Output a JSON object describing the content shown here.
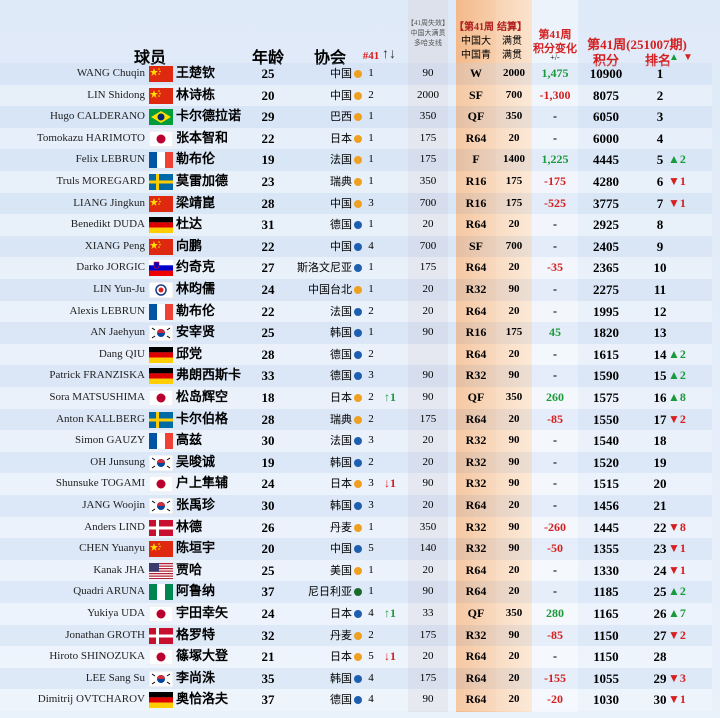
{
  "header": {
    "player": "球员",
    "age": "年龄",
    "association": "协会",
    "week": "#41",
    "week_arrows": "↑↓",
    "expiring": [
      "【41周失效】",
      "中国大满贯",
      "多哈支线"
    ],
    "settle": [
      "【第41周",
      "结算】"
    ],
    "event1": [
      "中国大",
      "满贯"
    ],
    "event2": [
      "中国青",
      "满贯"
    ],
    "change": [
      "第41周",
      "积分变化",
      "+/-"
    ],
    "period": "第41周(251007期)",
    "points": "积分",
    "rank": "排名",
    "up": "▲",
    "down": "▼"
  },
  "colors": {
    "up": "#1a9a3a",
    "down": "#d42020"
  },
  "rows": [
    {
      "name_en": "WANG Chuqin",
      "name_cn": "王楚钦",
      "age": 25,
      "association": "中国",
      "dot": "#f0a020",
      "seed": 1,
      "expiring": 90,
      "result": "W",
      "earned": 2000,
      "change": "1,475",
      "points": 10900,
      "rank": 1
    },
    {
      "name_en": "LIN Shidong",
      "name_cn": "林诗栋",
      "age": 20,
      "association": "中国",
      "dot": "#f0a020",
      "seed": 2,
      "expiring": 2000,
      "result": "SF",
      "earned": 700,
      "change": "-1,300",
      "points": 8075,
      "rank": 2
    },
    {
      "name_en": "Hugo CALDERANO",
      "name_cn": "卡尔德拉诺",
      "age": 29,
      "association": "巴西",
      "dot": "#f0a020",
      "seed": 1,
      "expiring": 350,
      "result": "QF",
      "earned": 350,
      "change": "-",
      "points": 6050,
      "rank": 3
    },
    {
      "name_en": "Tomokazu HARIMOTO",
      "name_cn": "张本智和",
      "age": 22,
      "association": "日本",
      "dot": "#f0a020",
      "seed": 1,
      "expiring": 175,
      "result": "R64",
      "earned": 20,
      "change": "-",
      "points": 6000,
      "rank": 4
    },
    {
      "name_en": "Felix LEBRUN",
      "name_cn": "勒布伦",
      "age": 19,
      "association": "法国",
      "dot": "#f0a020",
      "seed": 1,
      "expiring": 175,
      "result": "F",
      "earned": 1400,
      "change": "1,225",
      "points": 4445,
      "rank": 5,
      "rank_move": "▲2"
    },
    {
      "name_en": "Truls MOREGARD",
      "name_cn": "莫雷加德",
      "age": 23,
      "association": "瑞典",
      "dot": "#f0a020",
      "seed": 1,
      "expiring": 350,
      "result": "R16",
      "earned": 175,
      "change": "-175",
      "points": 4280,
      "rank": 6,
      "rank_move": "▼1"
    },
    {
      "name_en": "LIANG Jingkun",
      "name_cn": "梁靖崑",
      "age": 28,
      "association": "中国",
      "dot": "#f0a020",
      "seed": 3,
      "expiring": 700,
      "result": "R16",
      "earned": 175,
      "change": "-525",
      "points": 3775,
      "rank": 7,
      "rank_move": "▼1"
    },
    {
      "name_en": "Benedikt DUDA",
      "name_cn": "杜达",
      "age": 31,
      "association": "德国",
      "dot": "#1f5fb0",
      "seed": 1,
      "expiring": 20,
      "result": "R64",
      "earned": 20,
      "change": "-",
      "points": 2925,
      "rank": 8
    },
    {
      "name_en": "XIANG Peng",
      "name_cn": "向鹏",
      "age": 22,
      "association": "中国",
      "dot": "#1f5fb0",
      "seed": 4,
      "expiring": 700,
      "result": "SF",
      "earned": 700,
      "change": "-",
      "points": 2405,
      "rank": 9
    },
    {
      "name_en": "Darko JORGIC",
      "name_cn": "约奇克",
      "age": 27,
      "association": "斯洛文尼亚",
      "dot": "#1f5fb0",
      "seed": 1,
      "expiring": 175,
      "result": "R64",
      "earned": 20,
      "change": "-35",
      "points": 2365,
      "rank": 10
    },
    {
      "name_en": "LIN Yun-Ju",
      "name_cn": "林昀儒",
      "age": 24,
      "association": "中国台北",
      "dot": "#f0a020",
      "seed": 1,
      "expiring": 20,
      "result": "R32",
      "earned": 90,
      "change": "-",
      "points": 2275,
      "rank": 11
    },
    {
      "name_en": "Alexis LEBRUN",
      "name_cn": "勒布伦",
      "age": 22,
      "association": "法国",
      "dot": "#1f5fb0",
      "seed": 2,
      "expiring": 20,
      "result": "R64",
      "earned": 20,
      "change": "-",
      "points": 1995,
      "rank": 12
    },
    {
      "name_en": "AN Jaehyun",
      "name_cn": "安宰贤",
      "age": 25,
      "association": "韩国",
      "dot": "#1f5fb0",
      "seed": 1,
      "expiring": 90,
      "result": "R16",
      "earned": 175,
      "change": "45",
      "points": 1820,
      "rank": 13
    },
    {
      "name_en": "Dang QIU",
      "name_cn": "邱党",
      "age": 28,
      "association": "德国",
      "dot": "#1f5fb0",
      "seed": 2,
      "result": "R64",
      "earned": 20,
      "change": "-",
      "points": 1615,
      "rank": 14,
      "rank_move": "▲2"
    },
    {
      "name_en": "Patrick FRANZISKA",
      "name_cn": "弗朗西斯卡",
      "age": 33,
      "association": "德国",
      "dot": "#1f5fb0",
      "seed": 3,
      "expiring": 90,
      "result": "R32",
      "earned": 90,
      "change": "-",
      "points": 1590,
      "rank": 15,
      "rank_move": "▲2"
    },
    {
      "name_en": "Sora MATSUSHIMA",
      "name_cn": "松岛辉空",
      "age": 18,
      "association": "日本",
      "dot": "#f0a020",
      "seed": 2,
      "move": "↑1",
      "expiring": 90,
      "result": "QF",
      "earned": 350,
      "change": "260",
      "points": 1575,
      "rank": 16,
      "rank_move": "▲8"
    },
    {
      "name_en": "Anton KALLBERG",
      "name_cn": "卡尔伯格",
      "age": 28,
      "association": "瑞典",
      "dot": "#f0a020",
      "seed": 2,
      "expiring": 175,
      "result": "R64",
      "earned": 20,
      "change": "-85",
      "points": 1550,
      "rank": 17,
      "rank_move": "▼2"
    },
    {
      "name_en": "Simon GAUZY",
      "name_cn": "高兹",
      "age": 30,
      "association": "法国",
      "dot": "#1f5fb0",
      "seed": 3,
      "expiring": 20,
      "result": "R32",
      "earned": 90,
      "change": "-",
      "points": 1540,
      "rank": 18
    },
    {
      "name_en": "OH Junsung",
      "name_cn": "吴晙诚",
      "age": 19,
      "association": "韩国",
      "dot": "#1f5fb0",
      "seed": 2,
      "expiring": 20,
      "result": "R32",
      "earned": 90,
      "change": "-",
      "points": 1520,
      "rank": 19
    },
    {
      "name_en": "Shunsuke TOGAMI",
      "name_cn": "户上隼辅",
      "age": 24,
      "association": "日本",
      "dot": "#f0a020",
      "seed": 3,
      "move": "↓1",
      "expiring": 90,
      "result": "R32",
      "earned": 90,
      "change": "-",
      "points": 1515,
      "rank": 20
    },
    {
      "name_en": "JANG Woojin",
      "name_cn": "张禹珍",
      "age": 30,
      "association": "韩国",
      "dot": "#1f5fb0",
      "seed": 3,
      "expiring": 20,
      "result": "R64",
      "earned": 20,
      "change": "-",
      "points": 1456,
      "rank": 21
    },
    {
      "name_en": "Anders LIND",
      "name_cn": "林德",
      "age": 26,
      "association": "丹麦",
      "dot": "#f0a020",
      "seed": 1,
      "expiring": 350,
      "result": "R32",
      "earned": 90,
      "change": "-260",
      "points": 1445,
      "rank": 22,
      "rank_move": "▼8"
    },
    {
      "name_en": "CHEN Yuanyu",
      "name_cn": "陈垣宇",
      "age": 20,
      "association": "中国",
      "dot": "#1f5fb0",
      "seed": 5,
      "expiring": 140,
      "result": "R32",
      "earned": 90,
      "change": "-50",
      "points": 1355,
      "rank": 23,
      "rank_move": "▼1"
    },
    {
      "name_en": "Kanak JHA",
      "name_cn": "贾哈",
      "age": 25,
      "association": "美国",
      "dot": "#f0a020",
      "seed": 1,
      "expiring": 20,
      "result": "R64",
      "earned": 20,
      "change": "-",
      "points": 1330,
      "rank": 24,
      "rank_move": "▼1"
    },
    {
      "name_en": "Quadri ARUNA",
      "name_cn": "阿鲁纳",
      "age": 37,
      "association": "尼日利亚",
      "dot": "#1a6a2a",
      "seed": 1,
      "expiring": 90,
      "result": "R64",
      "earned": 20,
      "change": "-",
      "points": 1185,
      "rank": 25,
      "rank_move": "▲2"
    },
    {
      "name_en": "Yukiya UDA",
      "name_cn": "宇田幸矢",
      "age": 24,
      "association": "日本",
      "dot": "#1f5fb0",
      "seed": 4,
      "move": "↑1",
      "expiring": 33,
      "result": "QF",
      "earned": 350,
      "change": "280",
      "points": 1165,
      "rank": 26,
      "rank_move": "▲7"
    },
    {
      "name_en": "Jonathan GROTH",
      "name_cn": "格罗特",
      "age": 32,
      "association": "丹麦",
      "dot": "#f0a020",
      "seed": 2,
      "expiring": 175,
      "result": "R32",
      "earned": 90,
      "change": "-85",
      "points": 1150,
      "rank": 27,
      "rank_move": "▼2"
    },
    {
      "name_en": "Hiroto SHINOZUKA",
      "name_cn": "篠塚大登",
      "age": 21,
      "association": "日本",
      "dot": "#f0a020",
      "seed": 5,
      "move": "↓1",
      "expiring": 20,
      "result": "R64",
      "earned": 20,
      "change": "-",
      "points": 1150,
      "rank": 28
    },
    {
      "name_en": "LEE Sang Su",
      "name_cn": "李尚洙",
      "age": 35,
      "association": "韩国",
      "dot": "#1f5fb0",
      "seed": 4,
      "expiring": 175,
      "result": "R64",
      "earned": 20,
      "change": "-155",
      "points": 1055,
      "rank": 29,
      "rank_move": "▼3"
    },
    {
      "name_en": "Dimitrij OVTCHAROV",
      "name_cn": "奥恰洛夫",
      "age": 37,
      "association": "德国",
      "dot": "#1f5fb0",
      "seed": 4,
      "expiring": 90,
      "result": "R64",
      "earned": 20,
      "change": "-20",
      "points": 1030,
      "rank": 30,
      "rank_move": "▼1"
    }
  ]
}
